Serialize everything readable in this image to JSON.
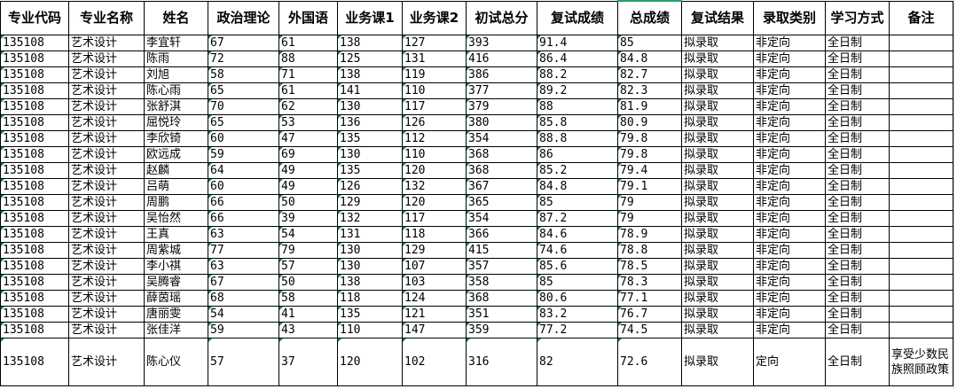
{
  "headers": [
    "专业代码",
    "专业名称",
    "姓名",
    "政治理论",
    "外国语",
    "业务课1",
    "业务课2",
    "初试总分",
    "复试成绩",
    "总成绩",
    "复试结果",
    "录取类别",
    "学习方式",
    "备注"
  ],
  "rows": [
    [
      "135108",
      "艺术设计",
      "李宜轩",
      "67",
      "61",
      "138",
      "127",
      "393",
      "91.4",
      "85",
      "拟录取",
      "非定向",
      "全日制",
      ""
    ],
    [
      "135108",
      "艺术设计",
      "陈雨",
      "72",
      "88",
      "125",
      "131",
      "416",
      "86.4",
      "84.8",
      "拟录取",
      "非定向",
      "全日制",
      ""
    ],
    [
      "135108",
      "艺术设计",
      "刘旭",
      "58",
      "71",
      "138",
      "119",
      "386",
      "88.2",
      "82.7",
      "拟录取",
      "非定向",
      "全日制",
      ""
    ],
    [
      "135108",
      "艺术设计",
      "陈心雨",
      "65",
      "61",
      "141",
      "110",
      "377",
      "89.2",
      "82.3",
      "拟录取",
      "非定向",
      "全日制",
      ""
    ],
    [
      "135108",
      "艺术设计",
      "张舒淇",
      "70",
      "62",
      "130",
      "117",
      "379",
      "88",
      "81.9",
      "拟录取",
      "非定向",
      "全日制",
      ""
    ],
    [
      "135108",
      "艺术设计",
      "屈悦玲",
      "65",
      "53",
      "136",
      "126",
      "380",
      "85.8",
      "80.9",
      "拟录取",
      "非定向",
      "全日制",
      ""
    ],
    [
      "135108",
      "艺术设计",
      "李欣锜",
      "60",
      "47",
      "135",
      "112",
      "354",
      "88.8",
      "79.8",
      "拟录取",
      "非定向",
      "全日制",
      ""
    ],
    [
      "135108",
      "艺术设计",
      "欧远成",
      "59",
      "69",
      "130",
      "110",
      "368",
      "86",
      "79.8",
      "拟录取",
      "非定向",
      "全日制",
      ""
    ],
    [
      "135108",
      "艺术设计",
      "赵麟",
      "64",
      "49",
      "135",
      "120",
      "368",
      "85.2",
      "79.4",
      "拟录取",
      "非定向",
      "全日制",
      ""
    ],
    [
      "135108",
      "艺术设计",
      "吕萌",
      "60",
      "49",
      "126",
      "132",
      "367",
      "84.8",
      "79.1",
      "拟录取",
      "非定向",
      "全日制",
      ""
    ],
    [
      "135108",
      "艺术设计",
      "周鹏",
      "66",
      "50",
      "129",
      "120",
      "365",
      "85",
      "79",
      "拟录取",
      "非定向",
      "全日制",
      ""
    ],
    [
      "135108",
      "艺术设计",
      "吴怡然",
      "66",
      "39",
      "132",
      "117",
      "354",
      "87.2",
      "79",
      "拟录取",
      "非定向",
      "全日制",
      ""
    ],
    [
      "135108",
      "艺术设计",
      "王真",
      "63",
      "54",
      "131",
      "118",
      "366",
      "84.6",
      "78.9",
      "拟录取",
      "非定向",
      "全日制",
      ""
    ],
    [
      "135108",
      "艺术设计",
      "周紫城",
      "77",
      "79",
      "130",
      "129",
      "415",
      "74.6",
      "78.8",
      "拟录取",
      "非定向",
      "全日制",
      ""
    ],
    [
      "135108",
      "艺术设计",
      "李小祺",
      "63",
      "57",
      "130",
      "107",
      "357",
      "85.6",
      "78.5",
      "拟录取",
      "非定向",
      "全日制",
      ""
    ],
    [
      "135108",
      "艺术设计",
      "吴腾睿",
      "67",
      "50",
      "138",
      "103",
      "358",
      "85",
      "78.3",
      "拟录取",
      "非定向",
      "全日制",
      ""
    ],
    [
      "135108",
      "艺术设计",
      "薛茵瑶",
      "68",
      "58",
      "118",
      "124",
      "368",
      "80.6",
      "77.1",
      "拟录取",
      "非定向",
      "全日制",
      ""
    ],
    [
      "135108",
      "艺术设计",
      "唐丽雯",
      "54",
      "41",
      "135",
      "121",
      "351",
      "83.2",
      "76.7",
      "拟录取",
      "非定向",
      "全日制",
      ""
    ],
    [
      "135108",
      "艺术设计",
      "张佳洋",
      "59",
      "43",
      "110",
      "147",
      "359",
      "77.2",
      "74.5",
      "拟录取",
      "非定向",
      "全日制",
      ""
    ],
    [
      "135108",
      "艺术设计",
      "陈心仪",
      "57",
      "37",
      "120",
      "102",
      "316",
      "82",
      "72.6",
      "拟录取",
      "定向",
      "全日制",
      "享受少数民族照顾政策"
    ]
  ]
}
